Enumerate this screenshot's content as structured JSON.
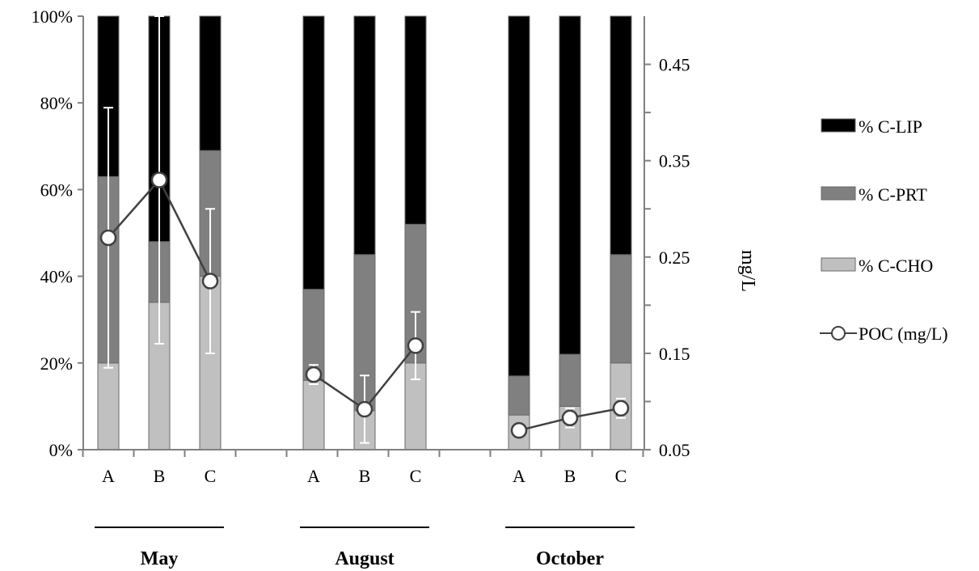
{
  "chart_data": {
    "type": "bar",
    "stacked": true,
    "groups": [
      "May",
      "August",
      "October"
    ],
    "categories": [
      "A",
      "B",
      "C"
    ],
    "series": [
      {
        "name": "% C-CHO",
        "color": "#c0c0c0",
        "values": [
          [
            20,
            34,
            40
          ],
          [
            16,
            9,
            20
          ],
          [
            8,
            10,
            20
          ]
        ]
      },
      {
        "name": "% C-PRT",
        "color": "#808080",
        "values": [
          [
            43,
            14,
            29
          ],
          [
            21,
            36,
            32
          ],
          [
            9,
            12,
            25
          ]
        ]
      },
      {
        "name": "% C-LIP",
        "color": "#000000",
        "values": [
          [
            37,
            52,
            31
          ],
          [
            63,
            55,
            48
          ],
          [
            83,
            78,
            55
          ]
        ]
      }
    ],
    "line_series": {
      "name": "POC (mg/L)",
      "axis": "right",
      "values": [
        [
          0.27,
          0.33,
          0.225
        ],
        [
          0.128,
          0.092,
          0.158
        ],
        [
          0.07,
          0.083,
          0.093
        ]
      ],
      "errors": [
        [
          0.135,
          0.17,
          0.075
        ],
        [
          0.01,
          0.035,
          0.035
        ],
        [
          0.005,
          0.01,
          0.01
        ]
      ]
    },
    "y_left": {
      "ticks": [
        "0%",
        "20%",
        "40%",
        "60%",
        "80%",
        "100%"
      ],
      "ylim": [
        0,
        100
      ]
    },
    "y_right": {
      "label": "mg/L",
      "ticks": [
        "0.05",
        "0.15",
        "0.25",
        "0.35",
        "0.45"
      ],
      "ylim": [
        0.05,
        0.5
      ]
    },
    "legend_position": "right",
    "grid": false
  }
}
